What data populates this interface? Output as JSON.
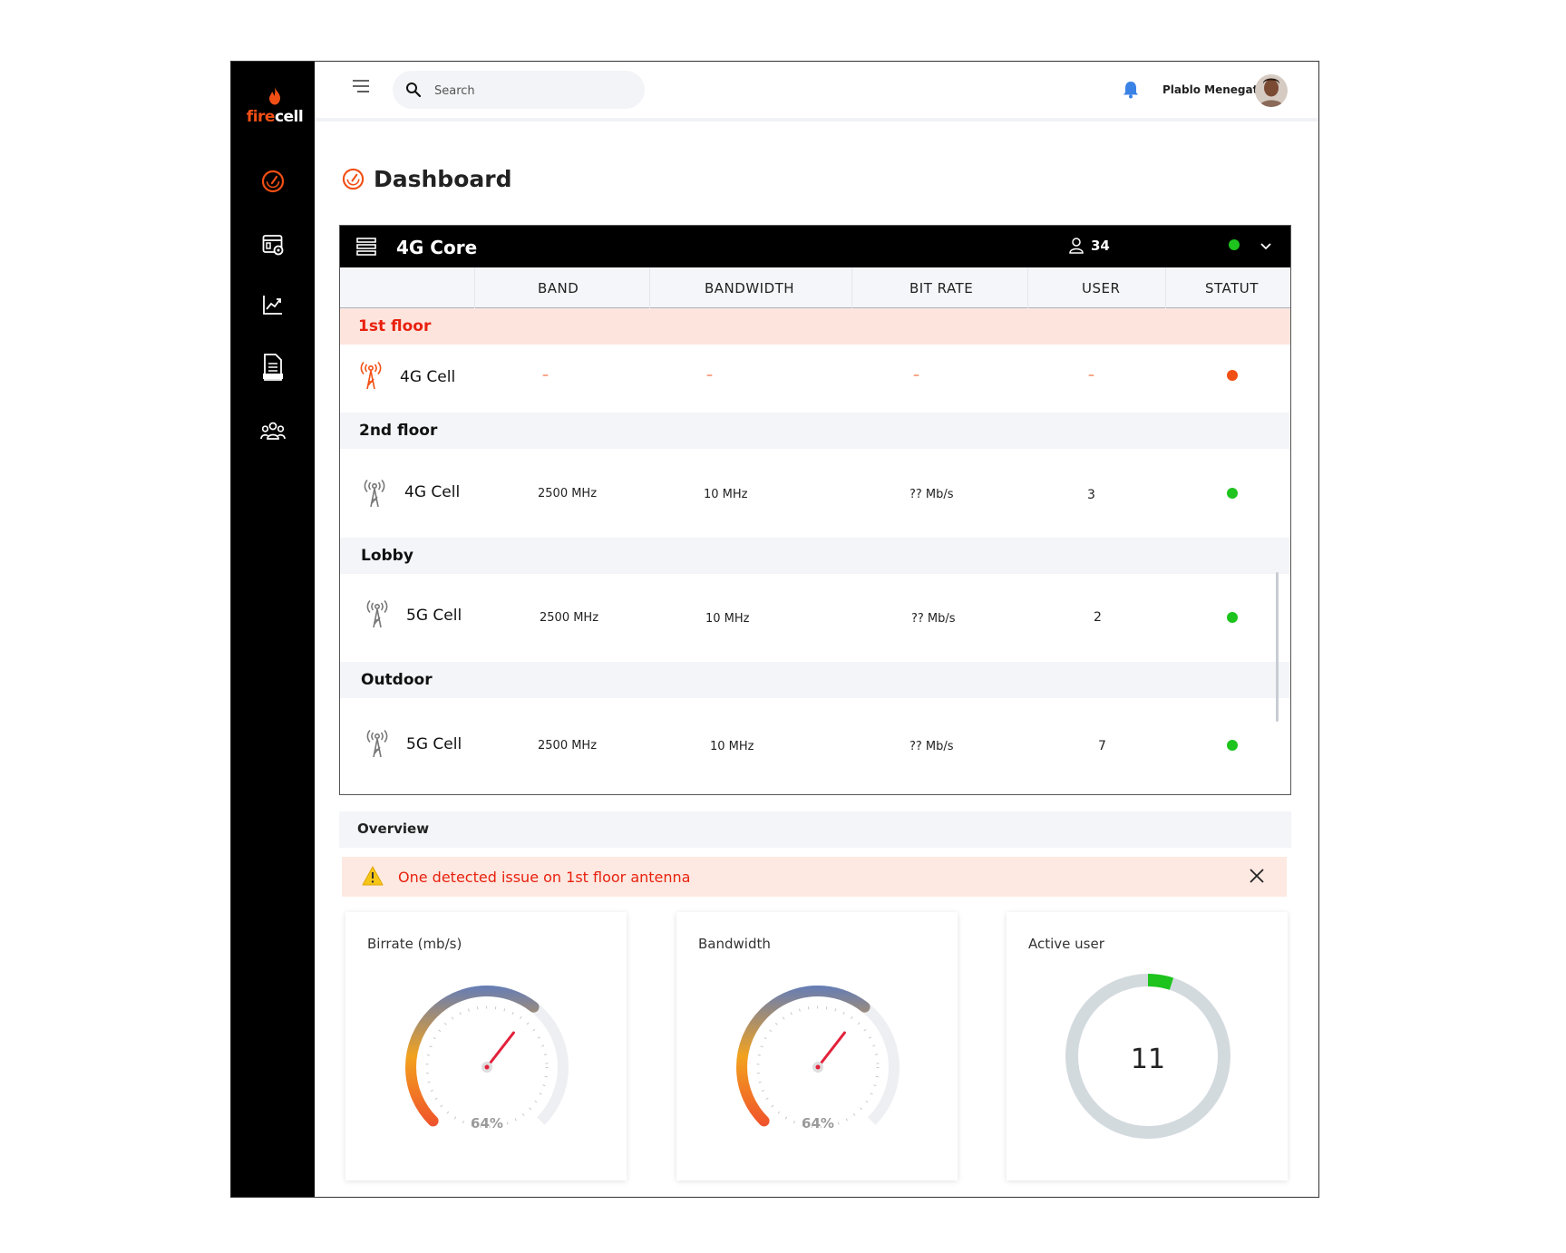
{
  "app": {
    "brand_fire": "fire",
    "brand_cell": "cell"
  },
  "topbar": {
    "search_placeholder": "Search",
    "user_name": "Plablo Menegatti"
  },
  "sidebar": {
    "items": [
      "dashboard-icon",
      "settings-panel-icon",
      "analytics-icon",
      "log-file-icon",
      "users-group-icon"
    ]
  },
  "page": {
    "title": "Dashboard"
  },
  "core": {
    "title": "4G Core",
    "user_count": "34",
    "status_color": "#1ec31e",
    "columns": {
      "band": "BAND",
      "bandwidth": "BANDWIDTH",
      "bitrate": "BIT RATE",
      "user": "USER",
      "status": "STATUT"
    },
    "groups": [
      {
        "name": "1st floor",
        "alert": true,
        "cell": {
          "name": "4G Cell",
          "band": "–",
          "bandwidth": "–",
          "bitrate": "–",
          "user": "–",
          "status_color": "#f24f14"
        }
      },
      {
        "name": "2nd floor",
        "alert": false,
        "cell": {
          "name": "4G Cell",
          "band": "2500 MHz",
          "bandwidth": "10 MHz",
          "bitrate": "?? Mb/s",
          "user": "3",
          "status_color": "#1ec31e"
        }
      },
      {
        "name": "Lobby",
        "alert": false,
        "cell": {
          "name": "5G Cell",
          "band": "2500 MHz",
          "bandwidth": "10 MHz",
          "bitrate": "?? Mb/s",
          "user": "2",
          "status_color": "#1ec31e"
        }
      },
      {
        "name": "Outdoor",
        "alert": false,
        "cell": {
          "name": "5G Cell",
          "band": "2500 MHz",
          "bandwidth": "10 MHz",
          "bitrate": "?? Mb/s",
          "user": "7",
          "status_color": "#1ec31e"
        }
      }
    ]
  },
  "overview": {
    "title": "Overview",
    "alert_message": "One detected issue on 1st floor antenna",
    "cards": {
      "bitrate": {
        "title": "Birrate (mb/s)",
        "percent": 64,
        "label": "64%"
      },
      "bandwidth": {
        "title": "Bandwidth",
        "percent": 64,
        "label": "64%"
      },
      "active_user": {
        "title": "Active user",
        "value": "11",
        "fraction": 0.05,
        "accent": "#1ec31e",
        "track": "#d3dade"
      }
    }
  }
}
